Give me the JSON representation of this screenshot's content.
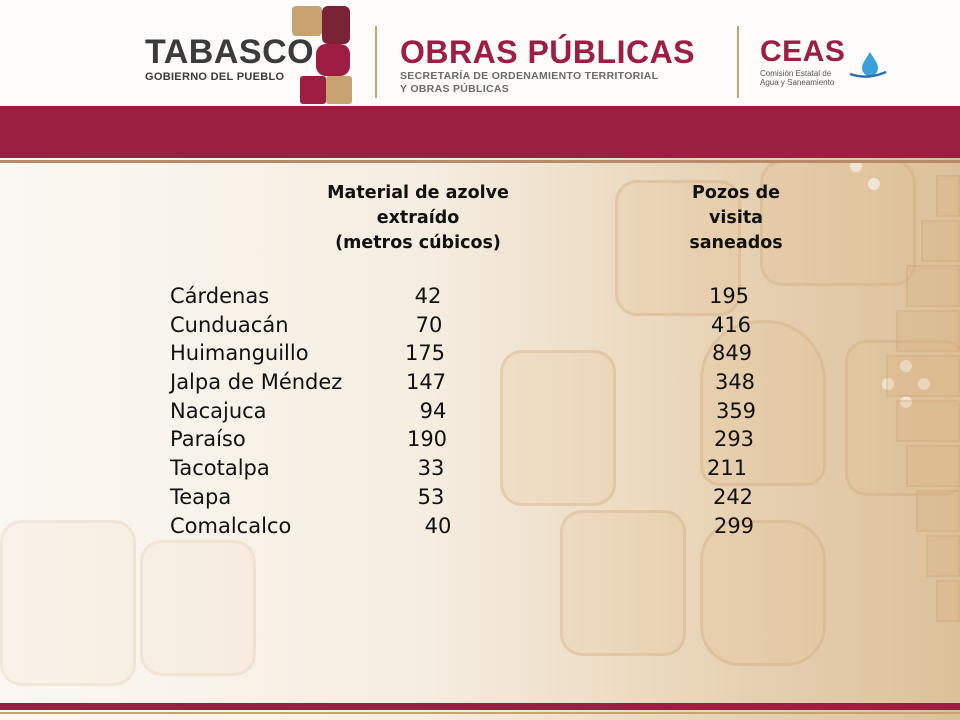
{
  "header": {
    "tabasco": {
      "name": "TABASCO",
      "subtitle": "GOBIERNO DEL PUEBLO"
    },
    "obras": {
      "name": "OBRAS PÚBLICAS",
      "subtitle_line1": "SECRETARÍA DE ORDENAMIENTO TERRITORIAL",
      "subtitle_line2": "Y OBRAS PÚBLICAS"
    },
    "ceas": {
      "name": "CEAS",
      "subtitle_line1": "Comisión Estatal de",
      "subtitle_line2": "Agua y Saneamiento"
    }
  },
  "table": {
    "col_material": [
      "Material de azolve",
      "extraído",
      "(metros cúbicos)"
    ],
    "col_pozos": [
      "Pozos de",
      "visita",
      "saneados"
    ],
    "rows": [
      {
        "municipio": "Cárdenas",
        "material": "42",
        "pozos": "195"
      },
      {
        "municipio": "Cunduacán",
        "material": "70",
        "pozos": "416"
      },
      {
        "municipio": "Huimanguillo",
        "material": "175",
        "pozos": "849"
      },
      {
        "municipio": "Jalpa de Méndez",
        "material": "147",
        "pozos": "348"
      },
      {
        "municipio": "Nacajuca",
        "material": "94",
        "pozos": "359"
      },
      {
        "municipio": "Paraíso",
        "material": "190",
        "pozos": "293"
      },
      {
        "municipio": "Tacotalpa",
        "material": "33",
        "pozos": "211"
      },
      {
        "municipio": "Teapa",
        "material": "53",
        "pozos": "242"
      },
      {
        "municipio": "Comalcalco",
        "material": "40",
        "pozos": "299"
      }
    ]
  },
  "colors": {
    "maroon": "#9b1f40",
    "gold": "#c9a36f",
    "text": "#111111"
  }
}
